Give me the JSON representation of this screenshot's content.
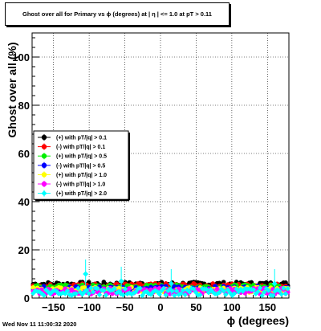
{
  "header": {
    "title": "Ghost over all for Primary vs ϕ (degrees) at | η | <= 1.0 at pT > 0.11"
  },
  "footer": {
    "timestamp": "Wed Nov 11 11:00:32 2020"
  },
  "chart_data": {
    "type": "scatter",
    "xlabel": "ϕ (degrees)",
    "ylabel": "Ghost over all (%)",
    "xlim": [
      -180,
      180
    ],
    "ylim": [
      0,
      110
    ],
    "xticks": [
      -150,
      -100,
      -50,
      0,
      50,
      100,
      150
    ],
    "yticks": [
      0,
      20,
      40,
      60,
      80,
      100
    ],
    "grid": true,
    "legend_position": "left-middle",
    "n_bins": 120,
    "series": [
      {
        "name": "(+) with pT/|q| > 0.1",
        "color": "#000000",
        "marker": "circle",
        "level": 5.8,
        "spread": 0.9
      },
      {
        "name": "(-) with pT/|q| > 0.1",
        "color": "#ff0000",
        "marker": "circle",
        "level": 5.2,
        "spread": 0.9
      },
      {
        "name": "(+) with pT/|q| > 0.5",
        "color": "#00ee00",
        "marker": "circle",
        "level": 4.6,
        "spread": 1.0
      },
      {
        "name": "(-) with pT/|q| > 0.5",
        "color": "#0000ff",
        "marker": "circle",
        "level": 4.0,
        "spread": 1.0
      },
      {
        "name": "(+) with pT/|q| > 1.0",
        "color": "#ffff00",
        "marker": "circle",
        "level": 3.4,
        "spread": 1.1
      },
      {
        "name": "(-) with pT/|q| > 1.0",
        "color": "#ff00ff",
        "marker": "circle",
        "level": 2.9,
        "spread": 1.3
      },
      {
        "name": "(+) with pT/|q| > 2.0",
        "color": "#00ffff",
        "marker": "diamond",
        "level": 2.6,
        "spread": 1.6,
        "highlights": [
          {
            "x": -105,
            "y": 10
          },
          {
            "x": -55,
            "y": 7
          },
          {
            "x": 15,
            "y": 6
          },
          {
            "x": 160,
            "y": 6
          }
        ]
      }
    ]
  }
}
